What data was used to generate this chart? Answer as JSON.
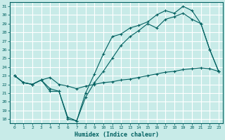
{
  "xlabel": "Humidex (Indice chaleur)",
  "bg_color": "#c8ebe8",
  "grid_color": "#ffffff",
  "line_color": "#006060",
  "xlim": [
    -0.5,
    23.5
  ],
  "ylim": [
    17.5,
    31.5
  ],
  "yticks": [
    18,
    19,
    20,
    21,
    22,
    23,
    24,
    25,
    26,
    27,
    28,
    29,
    30,
    31
  ],
  "xticks": [
    0,
    1,
    2,
    3,
    4,
    5,
    6,
    7,
    8,
    9,
    10,
    11,
    12,
    13,
    14,
    15,
    16,
    17,
    18,
    19,
    20,
    21,
    22,
    23
  ],
  "series1_x": [
    0,
    1,
    2,
    3,
    4,
    5,
    6,
    7,
    8,
    9,
    10,
    11,
    12,
    13,
    14,
    15,
    16,
    17,
    18,
    19,
    20,
    21,
    22,
    23
  ],
  "series1_y": [
    23.0,
    22.2,
    22.0,
    22.5,
    22.8,
    22.0,
    21.8,
    21.5,
    21.8,
    22.0,
    22.2,
    22.3,
    22.5,
    22.6,
    22.8,
    23.0,
    23.2,
    23.4,
    23.5,
    23.7,
    23.8,
    23.9,
    23.8,
    23.5
  ],
  "series2_x": [
    0,
    1,
    2,
    3,
    4,
    5,
    6,
    7,
    8,
    9,
    10,
    11,
    12,
    13,
    14,
    15,
    16,
    17,
    18,
    19,
    20,
    21,
    22,
    23
  ],
  "series2_y": [
    23.0,
    22.2,
    22.0,
    22.5,
    21.5,
    21.2,
    18.2,
    17.8,
    20.5,
    22.2,
    23.5,
    25.0,
    26.5,
    27.5,
    28.2,
    29.0,
    28.5,
    29.5,
    29.8,
    30.2,
    29.5,
    29.0,
    26.0,
    23.5
  ],
  "series3_x": [
    0,
    1,
    2,
    3,
    4,
    5,
    6,
    7,
    8,
    9,
    10,
    11,
    12,
    13,
    14,
    15,
    16,
    17,
    18,
    19,
    20,
    21,
    22,
    23
  ],
  "series3_y": [
    23.0,
    22.2,
    22.0,
    22.5,
    21.2,
    21.2,
    18.0,
    17.8,
    21.0,
    23.2,
    25.5,
    27.5,
    27.8,
    28.5,
    28.8,
    29.2,
    30.0,
    30.5,
    30.2,
    31.0,
    30.5,
    29.0,
    26.0,
    23.5
  ]
}
